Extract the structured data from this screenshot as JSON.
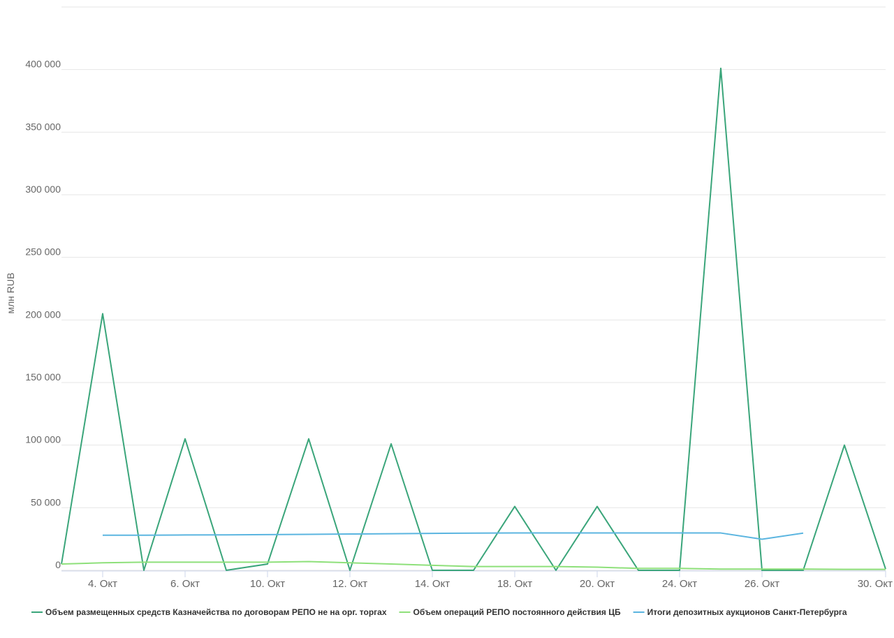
{
  "chart_data": {
    "type": "line",
    "y_label": "млн RUB",
    "categories": [
      null,
      "4. Окт",
      null,
      "6. Окт",
      null,
      "10. Окт",
      null,
      "12. Окт",
      null,
      "14. Окт",
      null,
      "18. Окт",
      null,
      "20. Окт",
      null,
      "24. Окт",
      null,
      "26. Окт",
      null,
      null,
      "30. Окт"
    ],
    "series": [
      {
        "name": "Объем размещенных средств Казначейства по договорам РЕПО не на орг. торгах",
        "color": "#3aa57a",
        "values": [
          5000,
          205000,
          0,
          105000,
          0,
          5000,
          105000,
          0,
          101000,
          0,
          0,
          51000,
          0,
          51000,
          0,
          0,
          401000,
          0,
          0,
          100000,
          1000
        ]
      },
      {
        "name": "Объем операций РЕПО постоянного действия ЦБ",
        "color": "#8ee07a",
        "values": [
          5000,
          6000,
          6500,
          6500,
          6500,
          6500,
          7000,
          6000,
          5000,
          4000,
          3000,
          3000,
          3000,
          2500,
          1500,
          1500,
          1000,
          1000,
          1000,
          800,
          800
        ]
      },
      {
        "name": "Итоги депозитных аукционов Санкт-Петербурга",
        "color": "#5bb5e0",
        "values": [
          null,
          28000,
          28000,
          28200,
          28300,
          28500,
          28700,
          29000,
          29200,
          29500,
          29700,
          29800,
          29800,
          29800,
          29800,
          29800,
          29800,
          24800,
          29700,
          null,
          null
        ]
      }
    ],
    "ylim": [
      0,
      450000
    ],
    "yticks": [
      0,
      {
        "value": 50000,
        "label": "50 000"
      },
      {
        "value": 100000,
        "label": "100 000"
      },
      {
        "value": 150000,
        "label": "150 000"
      },
      {
        "value": 200000,
        "label": "200 000"
      },
      {
        "value": 250000,
        "label": "250 000"
      },
      {
        "value": 300000,
        "label": "300 000"
      },
      {
        "value": 350000,
        "label": "350 000"
      },
      {
        "value": 400000,
        "label": "400 000"
      }
    ],
    "grid": true
  }
}
